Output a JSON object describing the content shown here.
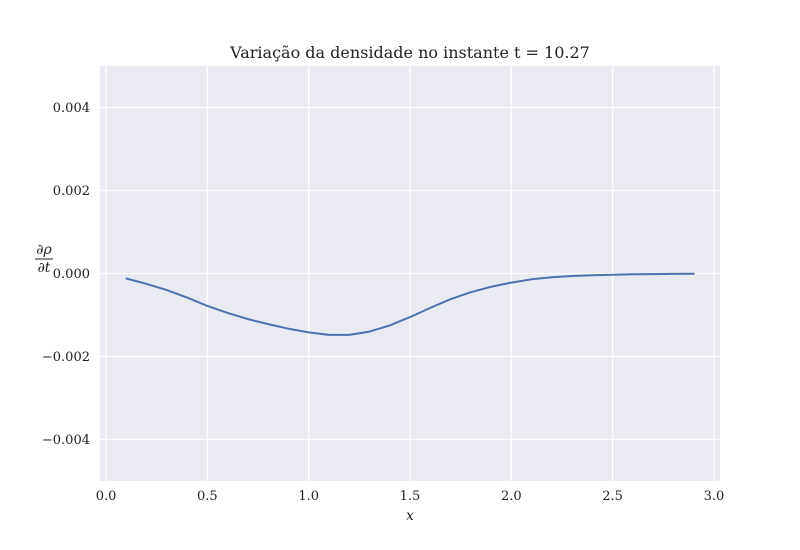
{
  "chart_data": {
    "type": "line",
    "title": "Variação da densidade no instante t = 10.27",
    "xlabel": "x",
    "ylabel": {
      "numerator": "∂ρ",
      "denominator": "∂t"
    },
    "xlim": [
      -0.03,
      3.03
    ],
    "ylim": [
      -0.005,
      0.005
    ],
    "xticks": [
      0.0,
      0.5,
      1.0,
      1.5,
      2.0,
      2.5,
      3.0
    ],
    "xtick_labels": [
      "0.0",
      "0.5",
      "1.0",
      "1.5",
      "2.0",
      "2.5",
      "3.0"
    ],
    "yticks": [
      0.004,
      0.002,
      0.0,
      -0.002,
      -0.004
    ],
    "ytick_labels": [
      "0.004",
      "0.002",
      "0.000",
      "−0.002",
      "−0.004"
    ],
    "grid": true,
    "background": "#eaeaf2",
    "grid_color": "#ffffff",
    "line_color": "#4c72b0",
    "series": [
      {
        "x": [
          0.1,
          0.2,
          0.3,
          0.4,
          0.5,
          0.6,
          0.7,
          0.8,
          0.9,
          1.0,
          1.1,
          1.2,
          1.3,
          1.4,
          1.5,
          1.6,
          1.7,
          1.8,
          1.9,
          2.0,
          2.1,
          2.2,
          2.3,
          2.4,
          2.5,
          2.6,
          2.7,
          2.8,
          2.9
        ],
        "y": [
          -0.00012,
          -0.00025,
          -0.0004,
          -0.00058,
          -0.00078,
          -0.00095,
          -0.0011,
          -0.00122,
          -0.00133,
          -0.00142,
          -0.00148,
          -0.00148,
          -0.0014,
          -0.00125,
          -0.00105,
          -0.00083,
          -0.00062,
          -0.00045,
          -0.00032,
          -0.00022,
          -0.00014,
          -9e-05,
          -6e-05,
          -4e-05,
          -3e-05,
          -2e-05,
          -1.5e-05,
          -1e-05,
          -5e-06
        ]
      }
    ]
  }
}
